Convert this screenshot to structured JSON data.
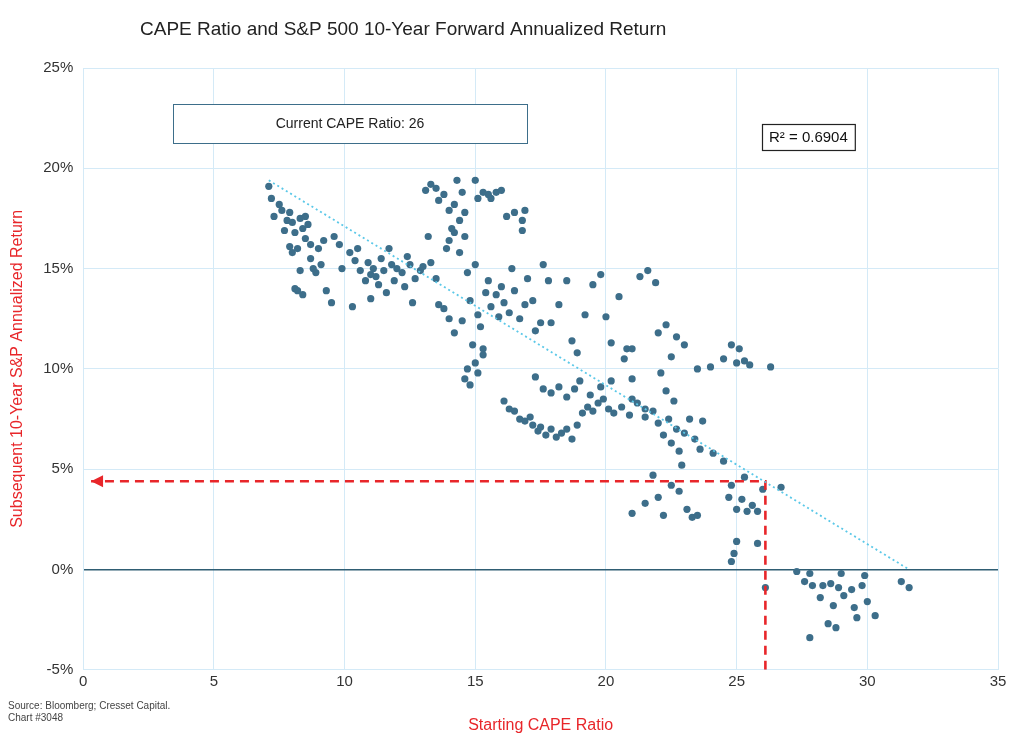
{
  "chart_data": {
    "type": "scatter",
    "title": "CAPE Ratio and S&P 500 10-Year Forward Annualized Return",
    "x_label": "Starting CAPE Ratio",
    "y_label": "Subsequent 10-Year S&P Annualized Return",
    "annotations": [
      "Current CAPE Ratio: 26",
      "R² = 0.6904"
    ],
    "source": "Source: Bloomberg; Cresset Capital.",
    "chart_id": "Chart #3048",
    "xlim": [
      0,
      35
    ],
    "xticks": [
      0,
      5,
      10,
      15,
      20,
      25,
      30,
      35
    ],
    "ylim": [
      -5,
      25
    ],
    "yticks": [
      {
        "value": -5,
        "label": "-5%"
      },
      {
        "value": 0,
        "label": "0%"
      },
      {
        "value": 5,
        "label": "5%"
      },
      {
        "value": 10,
        "label": "10%"
      },
      {
        "value": 15,
        "label": "15%"
      },
      {
        "value": 20,
        "label": "20%"
      },
      {
        "value": 25,
        "label": "25%"
      }
    ],
    "grid": true,
    "series": [
      {
        "type": "scatter",
        "color": "#3d6e8a",
        "marker": "circle",
        "x": [
          7.1,
          7.2,
          7.3,
          7.5,
          7.6,
          7.8,
          7.9,
          8.0,
          8.1,
          8.3,
          8.4,
          8.5,
          8.6,
          8.7,
          8.5,
          7.9,
          8.0,
          8.3,
          8.1,
          8.4,
          8.7,
          8.9,
          9.0,
          9.1,
          9.3,
          9.5,
          9.2,
          9.6,
          9.8,
          7.7,
          8.2,
          8.8,
          8.2,
          10.2,
          10.4,
          10.5,
          10.6,
          10.8,
          10.9,
          11.0,
          11.1,
          11.2,
          11.3,
          11.4,
          11.5,
          11.6,
          11.8,
          11.9,
          12.0,
          12.2,
          12.3,
          12.4,
          12.6,
          12.7,
          12.9,
          13.0,
          13.2,
          13.3,
          13.5,
          13.6,
          10.3,
          11.0,
          9.9,
          11.7,
          12.5,
          13.1,
          13.3,
          13.5,
          13.6,
          13.8,
          14.0,
          14.2,
          14.3,
          14.4,
          14.5,
          14.6,
          14.2,
          14.0,
          13.9,
          14.4,
          15.0,
          15.1,
          15.3,
          15.5,
          15.6,
          15.8,
          16.0,
          16.2,
          16.5,
          16.8,
          16.9,
          16.8,
          14.6,
          14.1,
          13.8,
          14.0,
          14.2,
          14.5,
          14.7,
          14.8,
          15.0,
          15.1,
          15.2,
          15.4,
          15.5,
          15.6,
          15.8,
          15.9,
          16.0,
          16.1,
          16.3,
          16.5,
          16.7,
          16.9,
          17.0,
          17.2,
          17.3,
          17.5,
          17.6,
          17.8,
          16.4,
          15.3,
          14.9,
          14.6,
          14.7,
          14.8,
          15.0,
          15.1,
          15.3,
          16.1,
          16.3,
          16.5,
          16.7,
          16.9,
          17.1,
          17.2,
          17.4,
          17.5,
          17.7,
          17.9,
          18.1,
          18.3,
          18.5,
          18.7,
          18.9,
          19.1,
          19.3,
          19.5,
          19.7,
          19.9,
          20.1,
          20.3,
          20.6,
          20.9,
          21.2,
          21.5,
          17.3,
          17.6,
          17.9,
          18.2,
          18.5,
          18.8,
          19.0,
          19.4,
          19.8,
          20.2,
          17.9,
          18.2,
          18.5,
          18.7,
          18.9,
          19.2,
          19.5,
          19.8,
          20.0,
          20.2,
          20.5,
          20.8,
          21.0,
          21.3,
          21.6,
          21.9,
          22.0,
          22.3,
          22.5,
          22.7,
          23.0,
          23.5,
          24.0,
          24.5,
          24.8,
          25.0,
          25.3,
          25.5,
          26.3,
          25.1,
          21.0,
          20.7,
          21.0,
          21.5,
          21.8,
          22.0,
          22.2,
          22.4,
          22.5,
          22.7,
          22.8,
          22.9,
          23.0,
          23.2,
          23.4,
          23.6,
          23.7,
          24.1,
          24.5,
          22.3,
          22.1,
          22.6,
          21.0,
          21.5,
          21.8,
          22.0,
          22.2,
          22.5,
          22.8,
          23.1,
          23.3,
          23.5,
          24.8,
          25.0,
          25.2,
          25.4,
          25.6,
          25.8,
          26.0,
          26.7,
          25.3,
          24.7,
          24.8,
          24.9,
          25.0,
          25.8,
          26.1,
          27.3,
          27.6,
          27.8,
          27.9,
          27.8,
          28.2,
          28.5,
          28.6,
          28.7,
          28.8,
          28.9,
          29.0,
          29.1,
          29.4,
          29.5,
          29.6,
          29.8,
          29.9,
          30.0,
          30.3,
          31.3,
          31.6,
          28.3
        ],
        "values": [
          19.1,
          18.5,
          17.6,
          18.2,
          17.9,
          17.4,
          17.8,
          17.3,
          16.8,
          17.5,
          17.0,
          17.6,
          17.2,
          16.2,
          16.5,
          16.1,
          15.8,
          14.9,
          14.0,
          13.7,
          15.5,
          14.8,
          16.0,
          15.2,
          13.9,
          13.3,
          16.4,
          16.6,
          16.2,
          16.9,
          16.0,
          15.0,
          13.9,
          15.8,
          15.4,
          16.0,
          14.9,
          14.4,
          15.3,
          14.7,
          15.0,
          14.6,
          14.2,
          15.5,
          14.9,
          13.8,
          15.2,
          14.4,
          15.0,
          14.8,
          14.1,
          15.6,
          13.3,
          14.5,
          14.9,
          15.1,
          16.6,
          15.3,
          14.5,
          13.2,
          13.1,
          13.5,
          15.0,
          16.0,
          15.2,
          18.9,
          19.2,
          19.0,
          18.4,
          18.7,
          17.9,
          18.2,
          19.4,
          17.4,
          18.8,
          17.8,
          16.8,
          16.4,
          16.0,
          15.8,
          19.4,
          18.5,
          18.8,
          18.7,
          18.5,
          18.8,
          18.9,
          17.6,
          17.8,
          17.4,
          17.9,
          16.9,
          16.6,
          17.0,
          13.0,
          12.5,
          11.8,
          12.4,
          14.8,
          13.4,
          15.2,
          12.7,
          12.1,
          13.8,
          14.4,
          13.1,
          13.7,
          12.6,
          14.1,
          13.3,
          12.8,
          13.9,
          12.5,
          13.2,
          14.5,
          13.4,
          11.9,
          12.3,
          15.2,
          14.4,
          15.0,
          11.0,
          11.2,
          9.5,
          10.0,
          9.2,
          10.3,
          9.8,
          10.7,
          8.4,
          8.0,
          7.9,
          7.5,
          7.4,
          7.6,
          7.2,
          6.9,
          7.1,
          6.7,
          7.0,
          6.6,
          6.8,
          7.0,
          6.5,
          7.2,
          7.8,
          8.1,
          7.9,
          8.3,
          8.5,
          8.0,
          7.8,
          8.1,
          7.7,
          8.3,
          8.0,
          9.6,
          9.0,
          8.8,
          9.1,
          8.6,
          9.0,
          9.4,
          8.7,
          9.1,
          9.4,
          12.3,
          13.2,
          14.4,
          11.4,
          10.8,
          12.7,
          14.2,
          14.7,
          12.6,
          11.3,
          13.6,
          11.0,
          9.5,
          14.6,
          14.9,
          14.3,
          11.8,
          12.2,
          10.6,
          11.6,
          11.2,
          10.0,
          10.1,
          10.5,
          11.2,
          10.3,
          10.4,
          10.2,
          10.1,
          11.0,
          11.0,
          10.5,
          8.5,
          7.6,
          7.9,
          7.3,
          6.7,
          7.5,
          6.3,
          7.0,
          5.9,
          5.2,
          6.8,
          7.5,
          6.5,
          6.0,
          7.4,
          5.8,
          5.4,
          8.9,
          9.8,
          8.4,
          2.8,
          3.3,
          4.7,
          3.6,
          2.7,
          4.2,
          3.9,
          3.0,
          2.6,
          2.7,
          4.2,
          3.0,
          3.5,
          2.9,
          3.2,
          2.9,
          4.0,
          4.1,
          4.6,
          3.6,
          0.4,
          0.8,
          1.4,
          1.3,
          -0.9,
          -0.1,
          -0.6,
          -0.2,
          -0.8,
          -3.4,
          -1.4,
          -2.7,
          -0.7,
          -1.8,
          -2.9,
          -0.9,
          -0.2,
          -1.3,
          -1.0,
          -1.9,
          -2.4,
          -0.8,
          -0.3,
          -1.6,
          -2.3,
          -0.6,
          -0.9,
          -0.8
        ]
      },
      {
        "type": "line",
        "color": "#5bc8e8",
        "line_style": "dotted",
        "x": [
          7.1,
          31.6
        ],
        "values": [
          19.4,
          0
        ]
      },
      {
        "type": "line",
        "color": "#e8262a",
        "line_style": "dashed",
        "marker": "arrow",
        "x": [
          26.1,
          26.1,
          0.3
        ],
        "values": [
          -5,
          4.4,
          4.4
        ]
      }
    ]
  }
}
